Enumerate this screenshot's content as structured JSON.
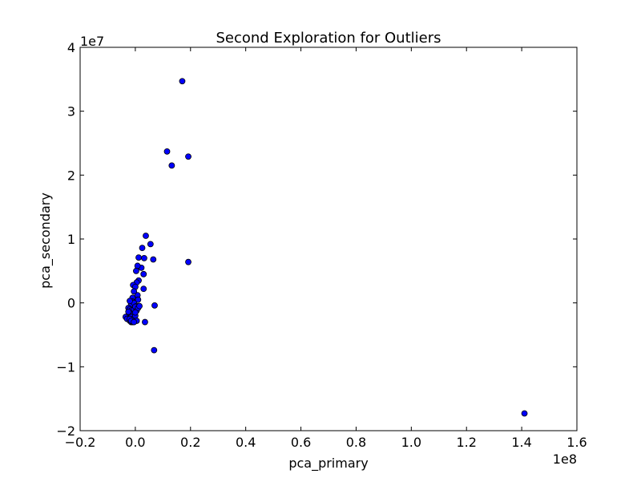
{
  "chart_data": {
    "type": "scatter",
    "title": "Second Exploration for Outliers",
    "xlabel": "pca_primary",
    "ylabel": "pca_secondary",
    "x_multiplier_label": "1e8",
    "y_multiplier_label": "1e7",
    "xlim": [
      -0.2,
      1.6
    ],
    "ylim": [
      -2,
      4
    ],
    "x_ticks": [
      -0.2,
      0.0,
      0.2,
      0.4,
      0.6,
      0.8,
      1.0,
      1.2,
      1.4,
      1.6
    ],
    "x_tick_labels": [
      "−0.2",
      "0.0",
      "0.2",
      "0.4",
      "0.6",
      "0.8",
      "1.0",
      "1.2",
      "1.4",
      "1.6"
    ],
    "y_ticks": [
      -2,
      -1,
      0,
      1,
      2,
      3,
      4
    ],
    "y_tick_labels": [
      "−2",
      "−1",
      "0",
      "1",
      "2",
      "3",
      "4"
    ],
    "grid": false,
    "marker_color": "#0000ff",
    "marker_edge_color": "#000000",
    "series": [
      {
        "x": [
          0.17,
          0.115,
          0.192,
          0.132,
          0.192,
          0.038,
          0.055,
          0.025,
          0.065,
          0.012,
          0.032,
          0.022,
          0.008,
          0.003,
          0.03,
          0.012,
          0.005,
          -0.008,
          0.03,
          0.0,
          0.008,
          -0.005,
          -0.01,
          0.07,
          0.01,
          -0.01,
          -0.015,
          -0.005,
          0.005,
          -0.02,
          -0.025,
          -0.02,
          -0.015,
          -0.01,
          -0.005,
          0.0,
          0.005,
          0.01,
          -0.02,
          -0.015,
          -0.005,
          0.015,
          -0.025,
          -0.03,
          -0.02,
          -0.015,
          -0.01,
          -0.005,
          0.0,
          -0.025,
          -0.035,
          -0.03,
          -0.02,
          -0.015,
          -0.01,
          0.005,
          0.0,
          -0.02,
          -0.015,
          -0.005,
          0.035,
          0.068,
          1.41
        ],
        "y": [
          3.47,
          2.37,
          2.29,
          2.15,
          0.64,
          1.05,
          0.92,
          0.86,
          0.68,
          0.71,
          0.7,
          0.55,
          0.58,
          0.5,
          0.45,
          0.35,
          0.32,
          0.28,
          0.22,
          0.25,
          0.12,
          0.18,
          0.08,
          -0.04,
          0.05,
          0.02,
          -0.02,
          0.0,
          -0.05,
          0.03,
          -0.08,
          -0.1,
          -0.12,
          -0.15,
          -0.1,
          -0.06,
          -0.12,
          -0.08,
          -0.18,
          -0.2,
          -0.17,
          -0.05,
          -0.2,
          -0.22,
          -0.25,
          -0.22,
          -0.26,
          -0.24,
          -0.2,
          -0.14,
          -0.22,
          -0.25,
          -0.28,
          -0.3,
          -0.3,
          -0.28,
          -0.15,
          -0.25,
          -0.28,
          -0.3,
          -0.3,
          -0.74,
          -1.73
        ]
      }
    ]
  }
}
